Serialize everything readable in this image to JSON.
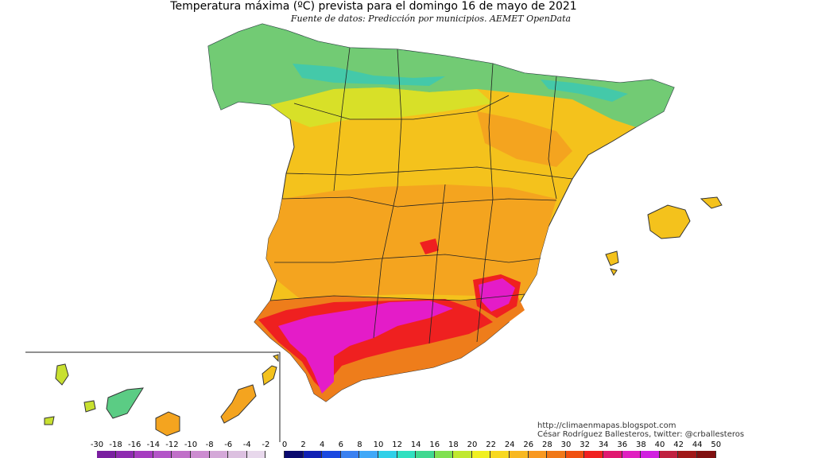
{
  "map": {
    "title": "Temperatura máxima (ºC) prevista para el domingo 16 de mayo de 2021",
    "subtitle": "Fuente de datos: Predicción por municipios. AEMET OpenData",
    "credit_url": "http://climaenmapas.blogspot.com",
    "credit_author": "César Rodríguez Ballesteros, twitter: @crballesteros",
    "colors": {
      "cool": "#3fd0a0",
      "mild": "#a8e040",
      "warm": "#f2df1e",
      "hot": "#f4a41f",
      "very_hot": "#ee7d1b",
      "red": "#ef2020",
      "magenta": "#e41cc8"
    }
  },
  "legend": {
    "labels": [
      "-30",
      "-18",
      "-16",
      "-14",
      "-12",
      "-10",
      "-8",
      "-6",
      "-4",
      "-2",
      "0",
      "2",
      "4",
      "6",
      "8",
      "10",
      "12",
      "14",
      "16",
      "18",
      "20",
      "22",
      "24",
      "26",
      "28",
      "30",
      "32",
      "34",
      "36",
      "38",
      "40",
      "42",
      "44",
      "50"
    ],
    "colors": [
      "#7a1fa0",
      "#8e2bb0",
      "#a63cc0",
      "#b355c8",
      "#c070c8",
      "#cc8cd0",
      "#d4a8d8",
      "#dcc0e0",
      "#e8d8ec",
      "#ffffff",
      "#0a0a6e",
      "#1020b4",
      "#1a48e0",
      "#3a80f0",
      "#40a8f8",
      "#30d0e8",
      "#30e0c0",
      "#40d890",
      "#80e050",
      "#c0e830",
      "#f0f020",
      "#f8d820",
      "#f8b820",
      "#f89820",
      "#f07818",
      "#f05010",
      "#f02020",
      "#e01870",
      "#e020c0",
      "#d020e0",
      "#c02040",
      "#a01818",
      "#801010"
    ]
  }
}
